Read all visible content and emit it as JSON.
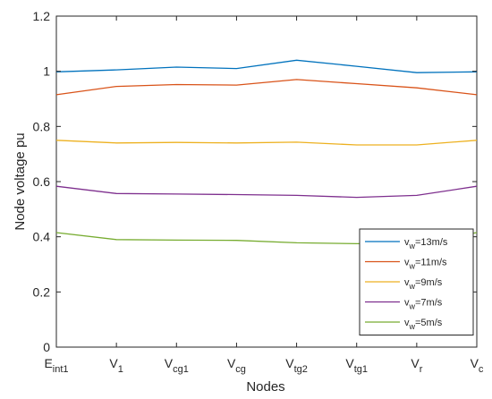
{
  "chart_data": {
    "type": "line",
    "xlabel": "Nodes",
    "ylabel": "Node voltage pu",
    "ylim": [
      0,
      1.2
    ],
    "yticks": [
      "0",
      "0.2",
      "0.4",
      "0.6",
      "0.8",
      "1",
      "1.2"
    ],
    "ytick_values": [
      0,
      0.2,
      0.4,
      0.6,
      0.8,
      1.0,
      1.2
    ],
    "grid": false,
    "legend_position": "bottom-right",
    "categories": [
      {
        "base": "E",
        "sub": "int1"
      },
      {
        "base": "V",
        "sub": "1"
      },
      {
        "base": "V",
        "sub": "cg1"
      },
      {
        "base": "V",
        "sub": "cg"
      },
      {
        "base": "V",
        "sub": "tg2"
      },
      {
        "base": "V",
        "sub": "tg1"
      },
      {
        "base": "V",
        "sub": "r"
      },
      {
        "base": "V",
        "sub": "c"
      }
    ],
    "series": [
      {
        "label_base": "v",
        "label_sub": "w",
        "label_rest": "=13m/s",
        "color": "#0072BD",
        "values": [
          0.998,
          1.005,
          1.015,
          1.01,
          1.04,
          1.018,
          0.995,
          0.998
        ]
      },
      {
        "label_base": "v",
        "label_sub": "w",
        "label_rest": "=11m/s",
        "color": "#D95319",
        "values": [
          0.915,
          0.945,
          0.952,
          0.95,
          0.97,
          0.955,
          0.94,
          0.915
        ]
      },
      {
        "label_base": "v",
        "label_sub": "w",
        "label_rest": "=9m/s",
        "color": "#EDB120",
        "values": [
          0.75,
          0.74,
          0.742,
          0.74,
          0.743,
          0.733,
          0.733,
          0.75
        ]
      },
      {
        "label_base": "v",
        "label_sub": "w",
        "label_rest": "=7m/s",
        "color": "#7E2F8E",
        "values": [
          0.583,
          0.557,
          0.555,
          0.553,
          0.55,
          0.543,
          0.55,
          0.583
        ]
      },
      {
        "label_base": "v",
        "label_sub": "w",
        "label_rest": "=5m/s",
        "color": "#77AC30",
        "values": [
          0.415,
          0.39,
          0.388,
          0.387,
          0.378,
          0.375,
          0.378,
          0.415
        ]
      }
    ]
  }
}
